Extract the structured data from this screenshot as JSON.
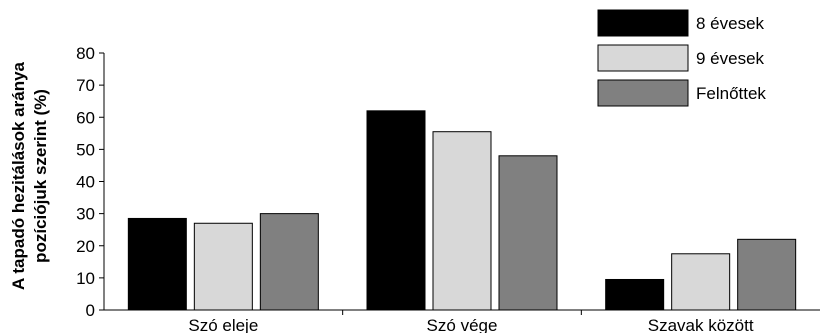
{
  "chart_data": {
    "type": "bar",
    "title": "",
    "xlabel": "",
    "ylabel": [
      "A tapadó hezitálások aránya",
      "pozíciójuk szerint (%)"
    ],
    "categories": [
      "Szó eleje",
      "Szó vége",
      "Szavak között"
    ],
    "series": [
      {
        "name": "8 évesek",
        "color": "#000000",
        "values": [
          28.5,
          62.0,
          9.5
        ]
      },
      {
        "name": "9 évesek",
        "color": "#d8d8d8",
        "values": [
          27.0,
          55.5,
          17.5
        ]
      },
      {
        "name": "Felnőttek",
        "color": "#808080",
        "values": [
          30.0,
          48.0,
          22.0
        ]
      }
    ],
    "ylim": [
      0,
      80
    ],
    "yticks": [
      "0",
      "10",
      "20",
      "30",
      "40",
      "50",
      "60",
      "70",
      "80"
    ],
    "grid": false,
    "legend_position": "top-right"
  }
}
